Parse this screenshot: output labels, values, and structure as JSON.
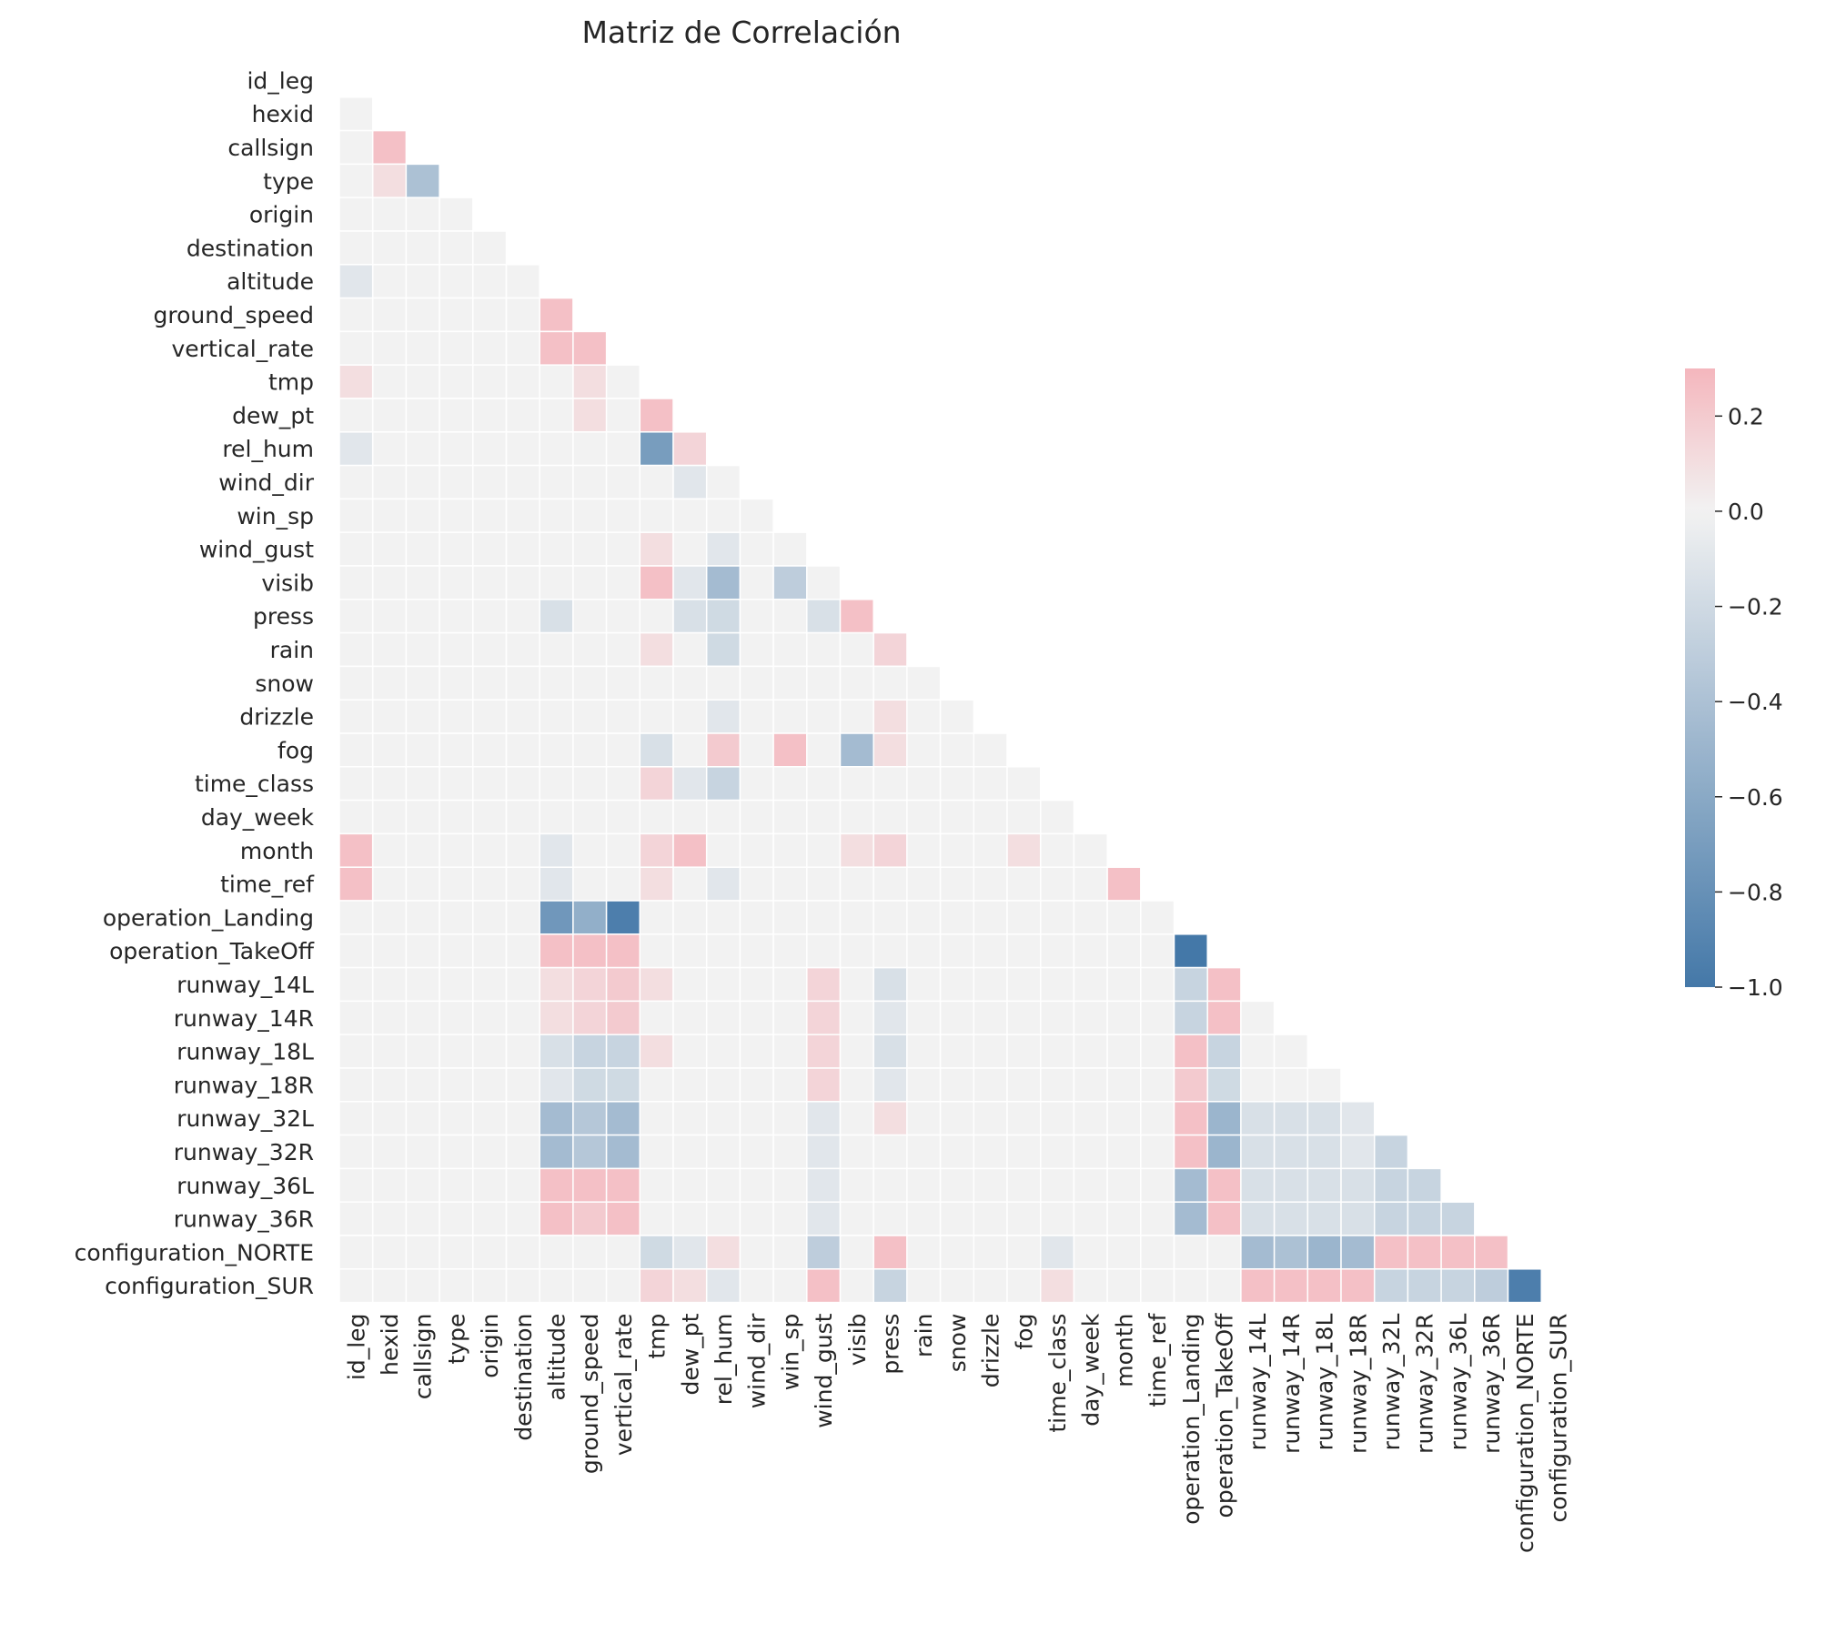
{
  "chart_data": {
    "type": "heatmap",
    "title": "Matriz de Correlación",
    "variables": [
      "id_leg",
      "hexid",
      "callsign",
      "type",
      "origin",
      "destination",
      "altitude",
      "ground_speed",
      "vertical_rate",
      "tmp",
      "dew_pt",
      "rel_hum",
      "wind_dir",
      "win_sp",
      "wind_gust",
      "visib",
      "press",
      "rain",
      "snow",
      "drizzle",
      "fog",
      "time_class",
      "day_week",
      "month",
      "time_ref",
      "operation_Landing",
      "operation_TakeOff",
      "runway_14L",
      "runway_14R",
      "runway_18L",
      "runway_18R",
      "runway_32L",
      "runway_32R",
      "runway_36L",
      "runway_36R",
      "configuration_NORTE",
      "configuration_SUR"
    ],
    "mask": "upper-triangle-including-diagonal",
    "lower_triangle_rows": [
      [],
      [
        0.0
      ],
      [
        0.0,
        0.25
      ],
      [
        0.0,
        0.1,
        -0.4
      ],
      [
        0.0,
        0.0,
        0.0,
        0.0
      ],
      [
        0.0,
        0.0,
        0.0,
        0.0,
        0.0
      ],
      [
        -0.1,
        0.0,
        0.0,
        0.0,
        0.0,
        0.0
      ],
      [
        0.0,
        0.0,
        0.0,
        0.0,
        0.0,
        0.0,
        0.25
      ],
      [
        0.0,
        0.0,
        0.0,
        0.0,
        0.0,
        0.0,
        0.25,
        0.25
      ],
      [
        0.1,
        0.0,
        0.0,
        0.0,
        0.0,
        0.0,
        0.0,
        0.1,
        0.0
      ],
      [
        0.0,
        0.0,
        0.0,
        0.0,
        0.0,
        0.0,
        0.0,
        0.1,
        0.0,
        0.25
      ],
      [
        -0.1,
        0.0,
        0.0,
        0.0,
        0.0,
        0.0,
        0.0,
        0.0,
        0.0,
        -0.7,
        0.15
      ],
      [
        0.0,
        0.0,
        0.0,
        0.0,
        0.0,
        0.0,
        0.0,
        0.0,
        0.0,
        0.0,
        -0.1,
        0.0
      ],
      [
        0.0,
        0.0,
        0.0,
        0.0,
        0.0,
        0.0,
        0.0,
        0.0,
        0.0,
        0.0,
        0.0,
        0.0,
        0.0
      ],
      [
        0.0,
        0.0,
        0.0,
        0.0,
        0.0,
        0.0,
        0.0,
        0.0,
        0.0,
        0.1,
        0.0,
        -0.1,
        0.0,
        0.0
      ],
      [
        0.0,
        0.0,
        0.0,
        0.0,
        0.0,
        0.0,
        0.0,
        0.0,
        0.0,
        0.25,
        -0.1,
        -0.45,
        0.0,
        -0.3,
        0.0
      ],
      [
        0.0,
        0.0,
        0.0,
        0.0,
        0.0,
        0.0,
        -0.15,
        0.0,
        0.0,
        0.0,
        -0.15,
        -0.2,
        0.0,
        0.0,
        -0.15,
        0.25
      ],
      [
        0.0,
        0.0,
        0.0,
        0.0,
        0.0,
        0.0,
        0.0,
        0.0,
        0.0,
        0.1,
        0.0,
        -0.2,
        0.0,
        0.0,
        0.0,
        0.0,
        0.15
      ],
      [
        0.0,
        0.0,
        0.0,
        0.0,
        0.0,
        0.0,
        0.0,
        0.0,
        0.0,
        0.0,
        0.0,
        0.0,
        0.0,
        0.0,
        0.0,
        0.0,
        0.0,
        0.0
      ],
      [
        0.0,
        0.0,
        0.0,
        0.0,
        0.0,
        0.0,
        0.0,
        0.0,
        0.0,
        0.0,
        0.0,
        -0.1,
        0.0,
        0.0,
        0.0,
        0.0,
        0.1,
        0.0,
        0.0
      ],
      [
        0.0,
        0.0,
        0.0,
        0.0,
        0.0,
        0.0,
        0.0,
        0.0,
        0.0,
        -0.15,
        0.0,
        0.2,
        0.0,
        0.25,
        0.0,
        -0.45,
        0.1,
        0.0,
        0.0,
        0.0
      ],
      [
        0.0,
        0.0,
        0.0,
        0.0,
        0.0,
        0.0,
        0.0,
        0.0,
        0.0,
        0.15,
        -0.1,
        -0.25,
        0.0,
        0.0,
        0.0,
        0.0,
        0.0,
        0.0,
        0.0,
        0.0,
        0.0
      ],
      [
        0.0,
        0.0,
        0.0,
        0.0,
        0.0,
        0.0,
        0.0,
        0.0,
        0.0,
        0.0,
        0.0,
        0.0,
        0.0,
        0.0,
        0.0,
        0.0,
        0.0,
        0.0,
        0.0,
        0.0,
        0.0,
        0.0
      ],
      [
        0.25,
        0.0,
        0.0,
        0.0,
        0.0,
        0.0,
        -0.1,
        0.0,
        0.0,
        0.15,
        0.25,
        0.0,
        0.0,
        0.0,
        0.0,
        0.1,
        0.15,
        0.0,
        0.0,
        0.0,
        0.1,
        0.0,
        0.0
      ],
      [
        0.25,
        0.0,
        0.0,
        0.0,
        0.0,
        0.0,
        -0.1,
        0.0,
        0.0,
        0.1,
        0.0,
        -0.1,
        0.0,
        0.0,
        0.0,
        0.0,
        0.0,
        0.0,
        0.0,
        0.0,
        0.0,
        0.0,
        0.0,
        0.25
      ],
      [
        0.0,
        0.0,
        0.0,
        0.0,
        0.0,
        0.0,
        -0.75,
        -0.55,
        -0.95,
        0.0,
        0.0,
        0.0,
        0.0,
        0.0,
        0.0,
        0.0,
        0.0,
        0.0,
        0.0,
        0.0,
        0.0,
        0.0,
        0.0,
        0.0,
        0.0
      ],
      [
        0.0,
        0.0,
        0.0,
        0.0,
        0.0,
        0.0,
        0.25,
        0.25,
        0.25,
        0.0,
        0.0,
        0.0,
        0.0,
        0.0,
        0.0,
        0.0,
        0.0,
        0.0,
        0.0,
        0.0,
        0.0,
        0.0,
        0.0,
        0.0,
        0.0,
        -1.0
      ],
      [
        0.0,
        0.0,
        0.0,
        0.0,
        0.0,
        0.0,
        0.1,
        0.15,
        0.2,
        0.1,
        0.0,
        0.0,
        0.0,
        0.0,
        0.15,
        0.0,
        -0.15,
        0.0,
        0.0,
        0.0,
        0.0,
        0.0,
        0.0,
        0.0,
        0.0,
        -0.25,
        0.25
      ],
      [
        0.0,
        0.0,
        0.0,
        0.0,
        0.0,
        0.0,
        0.1,
        0.15,
        0.2,
        0.0,
        0.0,
        0.0,
        0.0,
        0.0,
        0.15,
        0.0,
        -0.1,
        0.0,
        0.0,
        0.0,
        0.0,
        0.0,
        0.0,
        0.0,
        0.0,
        -0.25,
        0.25,
        0.0
      ],
      [
        0.0,
        0.0,
        0.0,
        0.0,
        0.0,
        0.0,
        -0.15,
        -0.25,
        -0.25,
        0.1,
        0.0,
        0.0,
        0.0,
        0.0,
        0.15,
        0.0,
        -0.15,
        0.0,
        0.0,
        0.0,
        0.0,
        0.0,
        0.0,
        0.0,
        0.0,
        0.25,
        -0.25,
        0.0,
        0.0
      ],
      [
        0.0,
        0.0,
        0.0,
        0.0,
        0.0,
        0.0,
        -0.1,
        -0.2,
        -0.2,
        0.0,
        0.0,
        0.0,
        0.0,
        0.0,
        0.15,
        0.0,
        -0.1,
        0.0,
        0.0,
        0.0,
        0.0,
        0.0,
        0.0,
        0.0,
        0.0,
        0.2,
        -0.2,
        0.0,
        0.0,
        0.0
      ],
      [
        0.0,
        0.0,
        0.0,
        0.0,
        0.0,
        0.0,
        -0.45,
        -0.35,
        -0.45,
        0.0,
        0.0,
        0.0,
        0.0,
        0.0,
        -0.1,
        0.0,
        0.1,
        0.0,
        0.0,
        0.0,
        0.0,
        0.0,
        0.0,
        0.0,
        0.0,
        0.25,
        -0.5,
        -0.15,
        -0.15,
        -0.15,
        -0.1
      ],
      [
        0.0,
        0.0,
        0.0,
        0.0,
        0.0,
        0.0,
        -0.45,
        -0.35,
        -0.45,
        0.0,
        0.0,
        0.0,
        0.0,
        0.0,
        -0.1,
        0.0,
        0.0,
        0.0,
        0.0,
        0.0,
        0.0,
        0.0,
        0.0,
        0.0,
        0.0,
        0.25,
        -0.5,
        -0.15,
        -0.15,
        -0.15,
        -0.1,
        -0.25
      ],
      [
        0.0,
        0.0,
        0.0,
        0.0,
        0.0,
        0.0,
        0.25,
        0.25,
        0.25,
        0.0,
        0.0,
        0.0,
        0.0,
        0.0,
        -0.1,
        0.0,
        0.0,
        0.0,
        0.0,
        0.0,
        0.0,
        0.0,
        0.0,
        0.0,
        0.0,
        -0.45,
        0.25,
        -0.15,
        -0.15,
        -0.15,
        -0.15,
        -0.25,
        -0.25
      ],
      [
        0.0,
        0.0,
        0.0,
        0.0,
        0.0,
        0.0,
        0.25,
        0.2,
        0.25,
        0.0,
        0.0,
        0.0,
        0.0,
        0.0,
        -0.1,
        0.0,
        0.0,
        0.0,
        0.0,
        0.0,
        0.0,
        0.0,
        0.0,
        0.0,
        0.0,
        -0.45,
        0.25,
        -0.15,
        -0.15,
        -0.15,
        -0.15,
        -0.25,
        -0.25,
        -0.25
      ],
      [
        0.0,
        0.0,
        0.0,
        0.0,
        0.0,
        0.0,
        0.0,
        0.0,
        0.0,
        -0.2,
        -0.1,
        0.1,
        0.0,
        0.0,
        -0.3,
        0.0,
        0.25,
        0.0,
        0.0,
        0.0,
        0.0,
        -0.1,
        0.0,
        0.0,
        0.0,
        0.0,
        0.0,
        -0.45,
        -0.4,
        -0.5,
        -0.45,
        0.25,
        0.25,
        0.25,
        0.25
      ],
      [
        0.0,
        0.0,
        0.0,
        0.0,
        0.0,
        0.0,
        0.0,
        0.0,
        0.0,
        0.15,
        0.1,
        -0.1,
        0.0,
        0.0,
        0.25,
        0.0,
        -0.25,
        0.0,
        0.0,
        0.0,
        0.0,
        0.1,
        0.0,
        0.0,
        0.0,
        0.0,
        0.0,
        0.25,
        0.25,
        0.25,
        0.25,
        -0.25,
        -0.25,
        -0.25,
        -0.3,
        -0.95
      ]
    ],
    "colorbar": {
      "vmin": -1.0,
      "vmax": 0.3,
      "ticks": [
        0.2,
        0.0,
        -0.2,
        -0.4,
        -0.6,
        -0.8,
        -1.0
      ],
      "tick_labels": [
        "0.2",
        "0.0",
        "−0.2",
        "−0.4",
        "−0.6",
        "−0.8",
        "−1.0"
      ],
      "colormap": "diverging blue-gray-red (center 0)",
      "color_negative": "#4478a8",
      "color_center": "#f2f2f2",
      "color_positive": "#f4b6bd"
    },
    "grid": false,
    "cell_border_color": "#ffffff"
  }
}
